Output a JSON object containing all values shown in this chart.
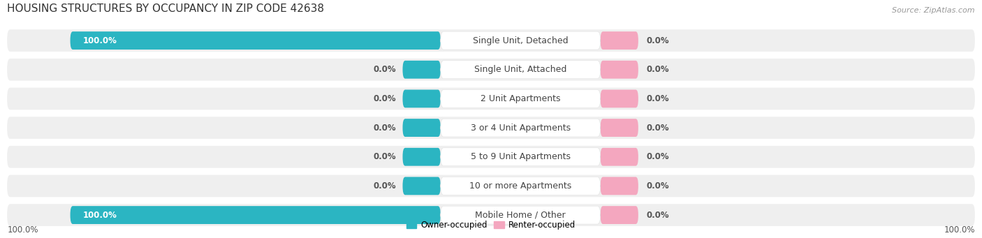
{
  "title": "HOUSING STRUCTURES BY OCCUPANCY IN ZIP CODE 42638",
  "source": "Source: ZipAtlas.com",
  "categories": [
    "Single Unit, Detached",
    "Single Unit, Attached",
    "2 Unit Apartments",
    "3 or 4 Unit Apartments",
    "5 to 9 Unit Apartments",
    "10 or more Apartments",
    "Mobile Home / Other"
  ],
  "owner_pct": [
    100.0,
    0.0,
    0.0,
    0.0,
    0.0,
    0.0,
    100.0
  ],
  "renter_pct": [
    0.0,
    0.0,
    0.0,
    0.0,
    0.0,
    0.0,
    0.0
  ],
  "owner_color": "#2BB5C2",
  "renter_color": "#F4A7BF",
  "row_bg_color": "#EFEFEF",
  "white_color": "#FFFFFF",
  "title_color": "#333333",
  "source_color": "#999999",
  "label_color": "#444444",
  "pct_color_on_bar": "#FFFFFF",
  "pct_color_off_bar": "#555555",
  "title_fontsize": 11,
  "source_fontsize": 8,
  "bar_label_fontsize": 8.5,
  "category_fontsize": 9,
  "legend_fontsize": 8.5,
  "axis_label_fontsize": 8.5
}
